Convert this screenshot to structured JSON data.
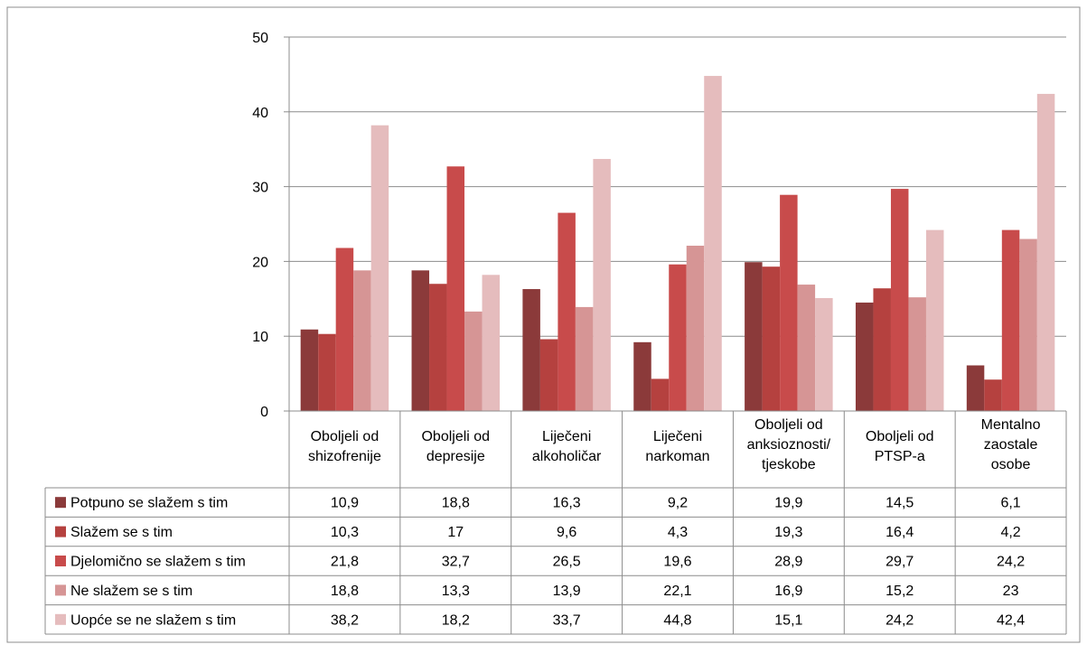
{
  "chart_data": {
    "type": "bar",
    "title": "",
    "xlabel": "",
    "ylabel": "",
    "ylim": [
      0,
      50
    ],
    "yticks": [
      0,
      10,
      20,
      30,
      40,
      50
    ],
    "grid": true,
    "legend_placement": "left of data table",
    "categories": [
      [
        "Oboljeli od",
        "shizofrenije"
      ],
      [
        "Oboljeli od",
        "depresije"
      ],
      [
        "Liječeni",
        "alkoholičar"
      ],
      [
        "Liječeni",
        "narkoman"
      ],
      [
        "Oboljeli od",
        "anksioznosti/",
        "tjeskobe"
      ],
      [
        "Oboljeli od",
        "PTSP-a"
      ],
      [
        "Mentalno",
        "zaostale",
        "osobe"
      ]
    ],
    "series": [
      {
        "name": "Potpuno se slažem s tim",
        "color": "#8b3a3a",
        "values": [
          10.9,
          18.8,
          16.3,
          9.2,
          19.9,
          14.5,
          6.1
        ],
        "labels": [
          "10,9",
          "18,8",
          "16,3",
          "9,2",
          "19,9",
          "14,5",
          "6,1"
        ]
      },
      {
        "name": "Slažem se s tim",
        "color": "#b5413f",
        "values": [
          10.3,
          17,
          9.6,
          4.3,
          19.3,
          16.4,
          4.2
        ],
        "labels": [
          "10,3",
          "17",
          "9,6",
          "4,3",
          "19,3",
          "16,4",
          "4,2"
        ]
      },
      {
        "name": "Djelomično se slažem s tim",
        "color": "#c84b4b",
        "values": [
          21.8,
          32.7,
          26.5,
          19.6,
          28.9,
          29.7,
          24.2
        ],
        "labels": [
          "21,8",
          "32,7",
          "26,5",
          "19,6",
          "28,9",
          "29,7",
          "24,2"
        ]
      },
      {
        "name": "Ne slažem se s tim",
        "color": "#d69595",
        "values": [
          18.8,
          13.3,
          13.9,
          22.1,
          16.9,
          15.2,
          23
        ],
        "labels": [
          "18,8",
          "13,3",
          "13,9",
          "22,1",
          "16,9",
          "15,2",
          "23"
        ]
      },
      {
        "name": "Uopće se ne slažem s tim",
        "color": "#e5bcbd",
        "values": [
          38.2,
          18.2,
          33.7,
          44.8,
          15.1,
          24.2,
          42.4
        ],
        "labels": [
          "38,2",
          "18,2",
          "33,7",
          "44,8",
          "15,1",
          "24,2",
          "42,4"
        ]
      }
    ]
  }
}
